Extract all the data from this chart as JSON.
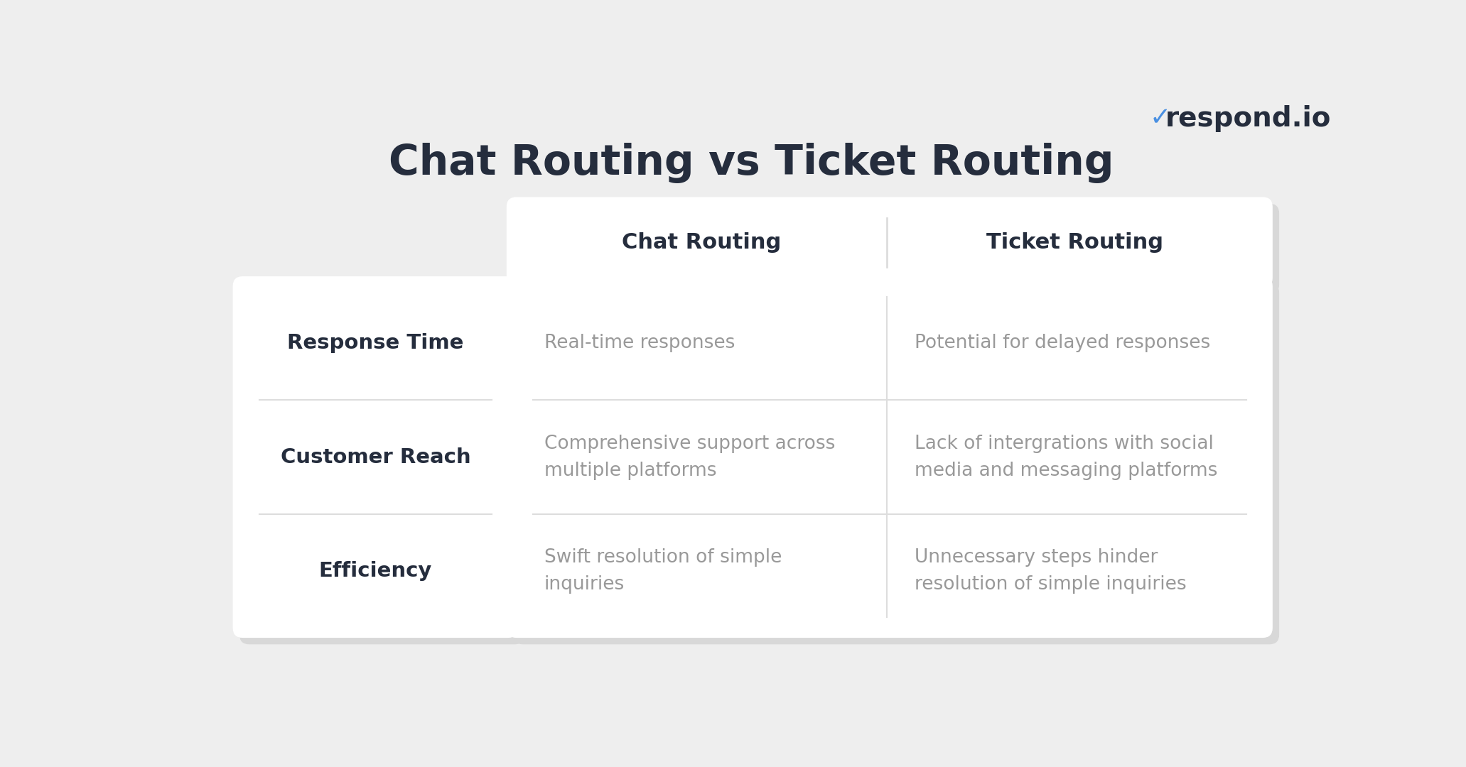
{
  "title": "Chat Routing vs Ticket Routing",
  "title_color": "#252d3d",
  "title_fontsize": 42,
  "background_color": "#eeeeee",
  "logo_text": "respond.io",
  "logo_color": "#252d3d",
  "logo_check_color": "#4a90e2",
  "col_headers": [
    "Chat Routing",
    "Ticket Routing"
  ],
  "col_header_fontsize": 22,
  "col_header_color": "#252d3d",
  "row_labels": [
    "Response Time",
    "Customer Reach",
    "Efficiency"
  ],
  "row_label_fontsize": 21,
  "row_label_color": "#252d3d",
  "cell_data": [
    [
      "Real-time responses",
      "Potential for delayed responses"
    ],
    [
      "Comprehensive support across\nmultiple platforms",
      "Lack of intergrations with social\nmedia and messaging platforms"
    ],
    [
      "Swift resolution of simple\ninquiries",
      "Unnecessary steps hinder\nresolution of simple inquiries"
    ]
  ],
  "cell_fontsize": 19,
  "cell_color": "#999999",
  "white_box_color": "#ffffff",
  "shadow_color": "#d8d8d8",
  "divider_color": "#dddddd"
}
